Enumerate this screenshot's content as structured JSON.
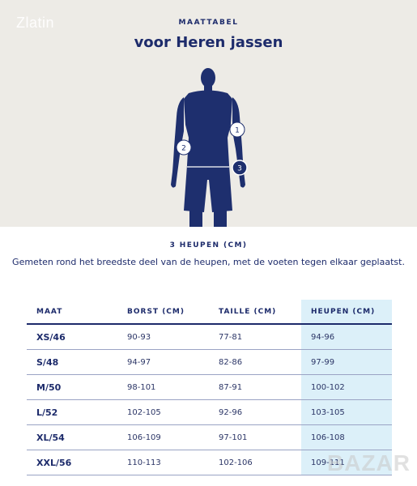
{
  "watermark_top": "Zlatin",
  "watermark_bottom": "BAZAR",
  "header": {
    "eyebrow": "MAATTABEL",
    "title": "voor Heren jassen"
  },
  "figure": {
    "markers": [
      "1",
      "2",
      "3"
    ],
    "colors": {
      "figure": "#1e2f6e",
      "background": "#edebe6"
    }
  },
  "section": {
    "title": "3 HEUPEN (CM)",
    "description": "Gemeten rond het breedste deel van de heupen, met de voeten tegen elkaar geplaatst."
  },
  "table": {
    "headers": [
      "MAAT",
      "BORST (CM)",
      "TAILLE (CM)",
      "HEUPEN (CM)"
    ],
    "highlight_color": "#dcf0f9",
    "rows": [
      [
        "XS/46",
        "90-93",
        "77-81",
        "94-96"
      ],
      [
        "S/48",
        "94-97",
        "82-86",
        "97-99"
      ],
      [
        "M/50",
        "98-101",
        "87-91",
        "100-102"
      ],
      [
        "L/52",
        "102-105",
        "92-96",
        "103-105"
      ],
      [
        "XL/54",
        "106-109",
        "97-101",
        "106-108"
      ],
      [
        "XXL/56",
        "110-113",
        "102-106",
        "109-111"
      ]
    ]
  }
}
